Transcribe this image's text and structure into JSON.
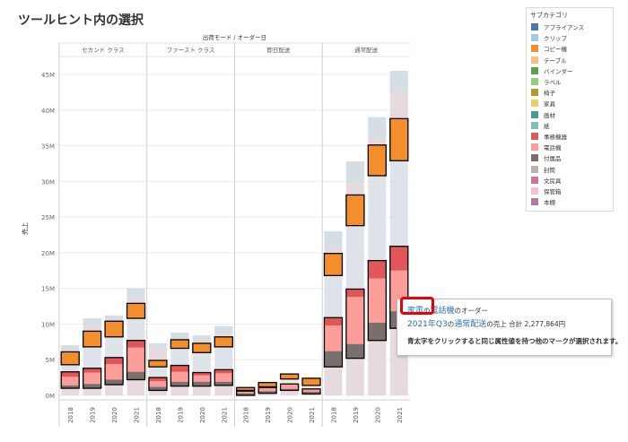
{
  "page": {
    "title": "ツールヒント内の選択",
    "header_label": "出荷モード / オーダー日",
    "y_axis_label": "売上"
  },
  "legend": {
    "title": "サブカテゴリ",
    "items": [
      {
        "label": "アプライアンス",
        "color": "#4e79a7"
      },
      {
        "label": "クリップ",
        "color": "#a0cbe8"
      },
      {
        "label": "コピー機",
        "color": "#f28e2b"
      },
      {
        "label": "テーブル",
        "color": "#ffbe7d"
      },
      {
        "label": "バインダー",
        "color": "#59a14f"
      },
      {
        "label": "ラベル",
        "color": "#8cd17d"
      },
      {
        "label": "椅子",
        "color": "#b6992d"
      },
      {
        "label": "家具",
        "color": "#f1ce63"
      },
      {
        "label": "画材",
        "color": "#499894"
      },
      {
        "label": "紙",
        "color": "#86bcb6"
      },
      {
        "label": "事務機器",
        "color": "#e15759"
      },
      {
        "label": "電話機",
        "color": "#ff9d9a"
      },
      {
        "label": "付属品",
        "color": "#79706e"
      },
      {
        "label": "封筒",
        "color": "#bab0ac"
      },
      {
        "label": "文房具",
        "color": "#d37295"
      },
      {
        "label": "保管箱",
        "color": "#fabfd2"
      },
      {
        "label": "本棚",
        "color": "#b07aa1"
      }
    ]
  },
  "tooltip": {
    "part1_link": "家電",
    "part1_mid": "の",
    "part1_link2": "電話機",
    "part1_tail": "のオーダー",
    "part2_link": "2021年Q3",
    "part2_mid": "の",
    "part2_link2": "通常配送",
    "part2_tail": "の売上 合計 2,277,864円",
    "note": "青太字をクリックすると同じ属性値を持つ他のマークが選択されます。"
  },
  "chart_data": {
    "type": "bar",
    "stacked": true,
    "ylabel": "売上",
    "ylim": [
      0,
      47000000
    ],
    "y_ticks": [
      0,
      5000000,
      10000000,
      15000000,
      20000000,
      25000000,
      30000000,
      35000000,
      40000000,
      45000000
    ],
    "y_tick_labels": [
      "0M",
      "5M",
      "10M",
      "15M",
      "20M",
      "25M",
      "30M",
      "35M",
      "40M",
      "45M"
    ],
    "header": "出荷モード / オーダー日",
    "grid": true,
    "legend_position": "right",
    "panels": [
      {
        "name": "セカンド クラス",
        "categories": [
          "2018",
          "2019",
          "2020",
          "2021"
        ],
        "totals": [
          7000000,
          10800000,
          11200000,
          15000000
        ],
        "highlighted": [
          {
            "name": "コピー機",
            "range": [
              [
                4300000,
                6100000
              ],
              [
                6800000,
                9000000
              ],
              [
                8200000,
                10400000
              ],
              [
                10800000,
                12900000
              ]
            ]
          },
          {
            "name": "電話機",
            "range": [
              [
                1400000,
                2600000
              ],
              [
                1600000,
                3200000
              ],
              [
                2200000,
                4400000
              ],
              [
                3300000,
                6700000
              ]
            ]
          },
          {
            "name": "事務機器",
            "range": [
              [
                2600000,
                3300000
              ],
              [
                3200000,
                3800000
              ],
              [
                4400000,
                5300000
              ],
              [
                6700000,
                7700000
              ]
            ]
          },
          {
            "name": "付属品",
            "range": [
              [
                1000000,
                1400000
              ],
              [
                1000000,
                1600000
              ],
              [
                1500000,
                2200000
              ],
              [
                2200000,
                3300000
              ]
            ]
          }
        ]
      },
      {
        "name": "ファースト クラス",
        "categories": [
          "2018",
          "2019",
          "2020",
          "2021"
        ],
        "totals": [
          7300000,
          8800000,
          8400000,
          9700000
        ],
        "highlighted": [
          {
            "name": "コピー機",
            "range": [
              [
                4000000,
                4900000
              ],
              [
                6600000,
                7800000
              ],
              [
                6000000,
                7300000
              ],
              [
                6800000,
                8200000
              ]
            ]
          },
          {
            "name": "電話機",
            "range": [
              [
                1200000,
                2000000
              ],
              [
                1900000,
                3300000
              ],
              [
                1900000,
                2800000
              ],
              [
                1900000,
                3100000
              ]
            ]
          },
          {
            "name": "事務機器",
            "range": [
              [
                2000000,
                2500000
              ],
              [
                3300000,
                4200000
              ],
              [
                2800000,
                3200000
              ],
              [
                3100000,
                3600000
              ]
            ]
          },
          {
            "name": "付属品",
            "range": [
              [
                700000,
                1200000
              ],
              [
                1300000,
                1900000
              ],
              [
                1300000,
                1900000
              ],
              [
                1400000,
                1900000
              ]
            ]
          }
        ]
      },
      {
        "name": "即日配送",
        "categories": [
          "2018",
          "2019",
          "2020",
          "2021"
        ],
        "totals": [
          1100000,
          1800000,
          3000000,
          2400000
        ],
        "highlighted": [
          {
            "name": "コピー機",
            "range": [
              [
                700000,
                1100000
              ],
              [
                1200000,
                1800000
              ],
              [
                2300000,
                3000000
              ],
              [
                1400000,
                2400000
              ]
            ]
          },
          {
            "name": "電話機",
            "range": [
              [
                300000,
                600000
              ],
              [
                600000,
                1100000
              ],
              [
                900000,
                1600000
              ],
              [
                500000,
                900000
              ]
            ]
          },
          {
            "name": "事務機器",
            "range": [
              [
                0,
                0
              ],
              [
                0,
                0
              ],
              [
                0,
                0
              ],
              [
                0,
                0
              ]
            ]
          },
          {
            "name": "付属品",
            "range": [
              [
                0,
                300000
              ],
              [
                300000,
                600000
              ],
              [
                700000,
                900000
              ],
              [
                200000,
                500000
              ]
            ]
          }
        ]
      },
      {
        "name": "通常配送",
        "categories": [
          "2018",
          "2019",
          "2020",
          "2021"
        ],
        "totals": [
          23000000,
          32800000,
          39000000,
          45500000
        ],
        "highlighted": [
          {
            "name": "コピー機",
            "range": [
              [
                16800000,
                19900000
              ],
              [
                23800000,
                28100000
              ],
              [
                30800000,
                35100000
              ],
              [
                32900000,
                38800000
              ]
            ]
          },
          {
            "name": "電話機",
            "range": [
              [
                6200000,
                9800000
              ],
              [
                7200000,
                13800000
              ],
              [
                10200000,
                16400000
              ],
              [
                11800000,
                17500000
              ]
            ]
          },
          {
            "name": "事務機器",
            "range": [
              [
                9800000,
                10900000
              ],
              [
                13800000,
                14900000
              ],
              [
                16400000,
                18900000
              ],
              [
                17500000,
                20900000
              ]
            ]
          },
          {
            "name": "付属品",
            "range": [
              [
                4000000,
                6200000
              ],
              [
                5200000,
                7200000
              ],
              [
                7700000,
                10200000
              ],
              [
                9400000,
                11800000
              ]
            ]
          }
        ]
      }
    ]
  }
}
